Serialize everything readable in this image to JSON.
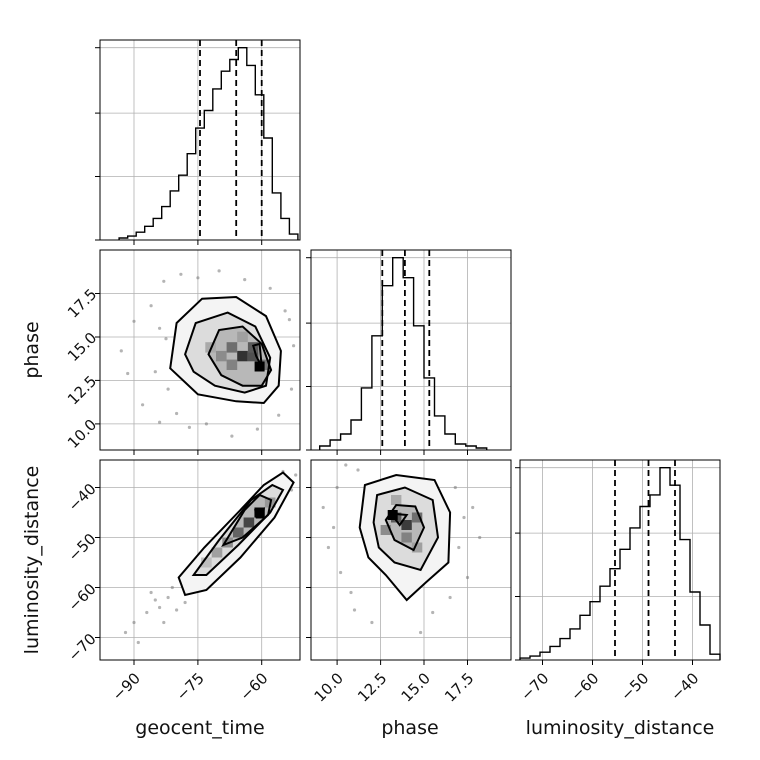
{
  "chart_data": {
    "type": "corner",
    "parameters": [
      "geocent_time",
      "phase",
      "luminosity_distance"
    ],
    "axes": {
      "geocent_time": {
        "lim": [
          -98,
          -51
        ],
        "ticks": [
          -90,
          -75,
          -60
        ],
        "tick_labels": [
          "−90",
          "−75",
          "−60"
        ]
      },
      "phase": {
        "lim": [
          8.5,
          20.0
        ],
        "ticks": [
          10.0,
          12.5,
          15.0,
          17.5
        ],
        "tick_labels": [
          "10.0",
          "12.5",
          "15.0",
          "17.5"
        ]
      },
      "luminosity_distance": {
        "lim": [
          -74.5,
          -34.5
        ],
        "ticks": [
          -70,
          -60,
          -50,
          -40
        ],
        "tick_labels": [
          "−70",
          "−60",
          "−50",
          "−40"
        ]
      }
    },
    "quantiles": {
      "geocent_time": [
        -74.5,
        -66.0,
        -60.0
      ],
      "phase": [
        12.6,
        13.9,
        15.3
      ],
      "luminosity_distance": [
        -55.5,
        -48.8,
        -43.5
      ]
    },
    "histograms": [
      {
        "parameter": "geocent_time",
        "edges": [
          -93.5,
          -91.5,
          -89.5,
          -87.5,
          -85.5,
          -83.5,
          -81.5,
          -79.5,
          -77.5,
          -75.5,
          -73.5,
          -71.5,
          -69.5,
          -67.5,
          -65.5,
          -63.5,
          -61.5,
          -59.5,
          -57.5,
          -55.5,
          -53.5,
          -51.5
        ],
        "counts": [
          1,
          2,
          4,
          7,
          11,
          17,
          25,
          33,
          44,
          57,
          66,
          77,
          86,
          92,
          98,
          89,
          74,
          52,
          24,
          11,
          3
        ]
      },
      {
        "parameter": "phase",
        "edges": [
          9.0,
          9.6,
          10.2,
          10.8,
          11.4,
          12.0,
          12.6,
          13.2,
          13.8,
          14.4,
          15.0,
          15.6,
          16.2,
          16.8,
          17.4,
          18.0,
          18.6
        ],
        "counts": [
          2,
          5,
          8,
          15,
          31,
          57,
          82,
          96,
          86,
          62,
          36,
          17,
          8,
          3,
          2,
          1
        ]
      },
      {
        "parameter": "luminosity_distance",
        "edges": [
          -74.5,
          -72.5,
          -70.5,
          -68.5,
          -66.5,
          -64.5,
          -62.5,
          -60.5,
          -58.5,
          -56.5,
          -54.5,
          -52.5,
          -50.5,
          -48.5,
          -46.5,
          -44.5,
          -42.5,
          -40.5,
          -38.5,
          -36.5,
          -34.5
        ],
        "counts": [
          1,
          2,
          4,
          7,
          11,
          16,
          23,
          30,
          38,
          47,
          57,
          68,
          79,
          85,
          99,
          90,
          62,
          35,
          18,
          3
        ]
      }
    ],
    "panels_2d": [
      {
        "x": "geocent_time",
        "y": "phase",
        "peak": [
          -60.5,
          13.3
        ],
        "density_cells": [
          {
            "x": -64.5,
            "y": 13.9,
            "level": 0.9
          },
          {
            "x": -62.0,
            "y": 13.9,
            "level": 0.75
          },
          {
            "x": -67.0,
            "y": 14.4,
            "level": 0.6
          },
          {
            "x": -62.0,
            "y": 14.4,
            "level": 0.7
          },
          {
            "x": -69.5,
            "y": 13.9,
            "level": 0.45
          },
          {
            "x": -67.0,
            "y": 13.4,
            "level": 0.5
          },
          {
            "x": -59.5,
            "y": 13.4,
            "level": 0.55
          },
          {
            "x": -72.0,
            "y": 14.4,
            "level": 0.3
          },
          {
            "x": -64.5,
            "y": 15.0,
            "level": 0.35
          }
        ],
        "contours": [
          [
            [
              -81.5,
              13.2
            ],
            [
              -80.0,
              15.8
            ],
            [
              -74.0,
              17.2
            ],
            [
              -66.0,
              17.3
            ],
            [
              -59.0,
              16.2
            ],
            [
              -55.5,
              14.2
            ],
            [
              -56.0,
              12.2
            ],
            [
              -59.5,
              11.2
            ],
            [
              -66.0,
              11.3
            ],
            [
              -75.0,
              11.7
            ]
          ],
          [
            [
              -78.0,
              14.0
            ],
            [
              -75.5,
              15.8
            ],
            [
              -68.0,
              16.4
            ],
            [
              -61.5,
              15.6
            ],
            [
              -58.0,
              13.8
            ],
            [
              -59.0,
              12.2
            ],
            [
              -64.0,
              11.8
            ],
            [
              -71.0,
              12.2
            ],
            [
              -76.0,
              13.0
            ]
          ],
          [
            [
              -72.5,
              14.0
            ],
            [
              -70.0,
              15.4
            ],
            [
              -64.5,
              15.6
            ],
            [
              -60.0,
              14.6
            ],
            [
              -57.8,
              13.1
            ],
            [
              -60.0,
              12.2
            ],
            [
              -64.5,
              12.2
            ],
            [
              -69.5,
              12.8
            ]
          ],
          [
            [
              -62.0,
              14.5
            ],
            [
              -60.5,
              14.6
            ],
            [
              -60.0,
              13.3
            ],
            [
              -61.3,
              13.9
            ]
          ]
        ],
        "scatter": [
          [
            -93.0,
            14.2
          ],
          [
            -91.5,
            12.9
          ],
          [
            -90.0,
            15.9
          ],
          [
            -88.0,
            11.1
          ],
          [
            -86.0,
            16.8
          ],
          [
            -85.0,
            13.0
          ],
          [
            -84.0,
            10.1
          ],
          [
            -83.0,
            18.2
          ],
          [
            -82.5,
            14.9
          ],
          [
            -80.0,
            10.6
          ],
          [
            -79.0,
            18.6
          ],
          [
            -77.0,
            9.8
          ],
          [
            -75.0,
            18.4
          ],
          [
            -73.0,
            10.0
          ],
          [
            -70.0,
            18.8
          ],
          [
            -67.0,
            9.3
          ],
          [
            -64.0,
            18.3
          ],
          [
            -61.0,
            9.7
          ],
          [
            -58.0,
            17.8
          ],
          [
            -56.0,
            10.5
          ],
          [
            -54.5,
            16.5
          ],
          [
            -53.0,
            12.0
          ],
          [
            -52.5,
            14.5
          ],
          [
            -84.0,
            15.5
          ],
          [
            -82.0,
            12.0
          ],
          [
            -53.5,
            16.0
          ]
        ]
      },
      {
        "x": "geocent_time",
        "y": "luminosity_distance",
        "peak": [
          -60.5,
          -45.0
        ],
        "density_cells": [
          {
            "x": -63.0,
            "y": -47.0,
            "level": 0.8
          },
          {
            "x": -65.5,
            "y": -49.0,
            "level": 0.65
          },
          {
            "x": -60.5,
            "y": -45.0,
            "level": 0.7
          },
          {
            "x": -68.0,
            "y": -51.0,
            "level": 0.45
          },
          {
            "x": -70.5,
            "y": -53.0,
            "level": 0.35
          },
          {
            "x": -58.0,
            "y": -43.0,
            "level": 0.4
          },
          {
            "x": -73.0,
            "y": -55.0,
            "level": 0.2
          }
        ],
        "contours": [
          [
            [
              -79.5,
              -58.0
            ],
            [
              -78.0,
              -61.5
            ],
            [
              -73.0,
              -60.5
            ],
            [
              -65.0,
              -54.0
            ],
            [
              -57.0,
              -46.0
            ],
            [
              -52.5,
              -39.0
            ],
            [
              -55.0,
              -37.0
            ],
            [
              -59.5,
              -39.5
            ],
            [
              -65.0,
              -44.5
            ],
            [
              -73.5,
              -52.0
            ]
          ],
          [
            [
              -76.0,
              -57.5
            ],
            [
              -73.0,
              -57.5
            ],
            [
              -65.5,
              -51.5
            ],
            [
              -58.0,
              -45.0
            ],
            [
              -55.0,
              -40.5
            ],
            [
              -57.5,
              -39.5
            ],
            [
              -62.5,
              -42.5
            ],
            [
              -70.0,
              -50.5
            ]
          ],
          [
            [
              -69.0,
              -51.5
            ],
            [
              -64.5,
              -50.0
            ],
            [
              -58.5,
              -45.5
            ],
            [
              -57.8,
              -42.5
            ],
            [
              -60.5,
              -41.5
            ],
            [
              -64.0,
              -44.5
            ]
          ],
          [
            [
              -61.5,
              -44.5
            ],
            [
              -59.5,
              -44.2
            ],
            [
              -59.8,
              -46.0
            ],
            [
              -61.2,
              -46.0
            ]
          ]
        ],
        "scatter": [
          [
            -92.0,
            -69.0
          ],
          [
            -90.0,
            -67.0
          ],
          [
            -89.0,
            -71.0
          ],
          [
            -87.0,
            -65.0
          ],
          [
            -85.0,
            -62.5
          ],
          [
            -83.0,
            -67.0
          ],
          [
            -81.0,
            -60.0
          ],
          [
            -80.0,
            -64.5
          ],
          [
            -78.0,
            -63.0
          ],
          [
            -76.0,
            -58.0
          ],
          [
            -82.0,
            -62.0
          ],
          [
            -84.0,
            -64.0
          ],
          [
            -86.0,
            -61.0
          ],
          [
            -72.0,
            -59.0
          ],
          [
            -56.0,
            -41.0
          ],
          [
            -54.0,
            -38.5
          ],
          [
            -53.0,
            -40.5
          ],
          [
            -52.0,
            -37.5
          ],
          [
            -55.0,
            -36.8
          ],
          [
            -57.0,
            -44.5
          ],
          [
            -75.0,
            -54.0
          ],
          [
            -70.0,
            -56.0
          ]
        ]
      },
      {
        "x": "phase",
        "y": "luminosity_distance",
        "peak": [
          13.2,
          -45.5
        ],
        "density_cells": [
          {
            "x": 14.0,
            "y": -47.5,
            "level": 0.85
          },
          {
            "x": 13.4,
            "y": -46.0,
            "level": 0.7
          },
          {
            "x": 14.6,
            "y": -46.0,
            "level": 0.6
          },
          {
            "x": 14.0,
            "y": -50.0,
            "level": 0.5
          },
          {
            "x": 12.8,
            "y": -48.5,
            "level": 0.45
          },
          {
            "x": 14.6,
            "y": -52.0,
            "level": 0.35
          },
          {
            "x": 13.4,
            "y": -42.5,
            "level": 0.3
          }
        ],
        "contours": [
          [
            [
              11.3,
              -48.0
            ],
            [
              11.6,
              -39.5
            ],
            [
              13.4,
              -37.5
            ],
            [
              15.6,
              -38.5
            ],
            [
              16.5,
              -45.0
            ],
            [
              16.4,
              -55.0
            ],
            [
              15.1,
              -59.0
            ],
            [
              14.0,
              -62.5
            ],
            [
              12.8,
              -57.5
            ],
            [
              11.8,
              -54.0
            ]
          ],
          [
            [
              12.1,
              -47.0
            ],
            [
              12.3,
              -41.5
            ],
            [
              13.9,
              -40.0
            ],
            [
              15.5,
              -42.5
            ],
            [
              15.8,
              -50.0
            ],
            [
              14.8,
              -56.5
            ],
            [
              13.3,
              -55.0
            ],
            [
              12.4,
              -52.0
            ]
          ],
          [
            [
              12.8,
              -46.5
            ],
            [
              13.4,
              -43.5
            ],
            [
              14.5,
              -43.8
            ],
            [
              15.0,
              -48.0
            ],
            [
              14.4,
              -52.5
            ],
            [
              13.3,
              -50.5
            ]
          ],
          [
            [
              13.1,
              -45.2
            ],
            [
              14.0,
              -45.5
            ],
            [
              13.6,
              -47.5
            ]
          ]
        ],
        "scatter": [
          [
            9.2,
            -44.0
          ],
          [
            9.5,
            -52.0
          ],
          [
            10.0,
            -40.0
          ],
          [
            10.2,
            -57.0
          ],
          [
            10.5,
            -35.5
          ],
          [
            10.8,
            -61.0
          ],
          [
            11.0,
            -64.5
          ],
          [
            11.2,
            -36.5
          ],
          [
            16.8,
            -40.0
          ],
          [
            17.0,
            -52.0
          ],
          [
            17.3,
            -46.0
          ],
          [
            17.5,
            -58.0
          ],
          [
            16.5,
            -62.0
          ],
          [
            15.5,
            -65.0
          ],
          [
            12.0,
            -67.0
          ],
          [
            14.8,
            -69.0
          ],
          [
            17.8,
            -44.0
          ],
          [
            18.2,
            -50.0
          ],
          [
            9.8,
            -48.0
          ]
        ]
      }
    ]
  }
}
